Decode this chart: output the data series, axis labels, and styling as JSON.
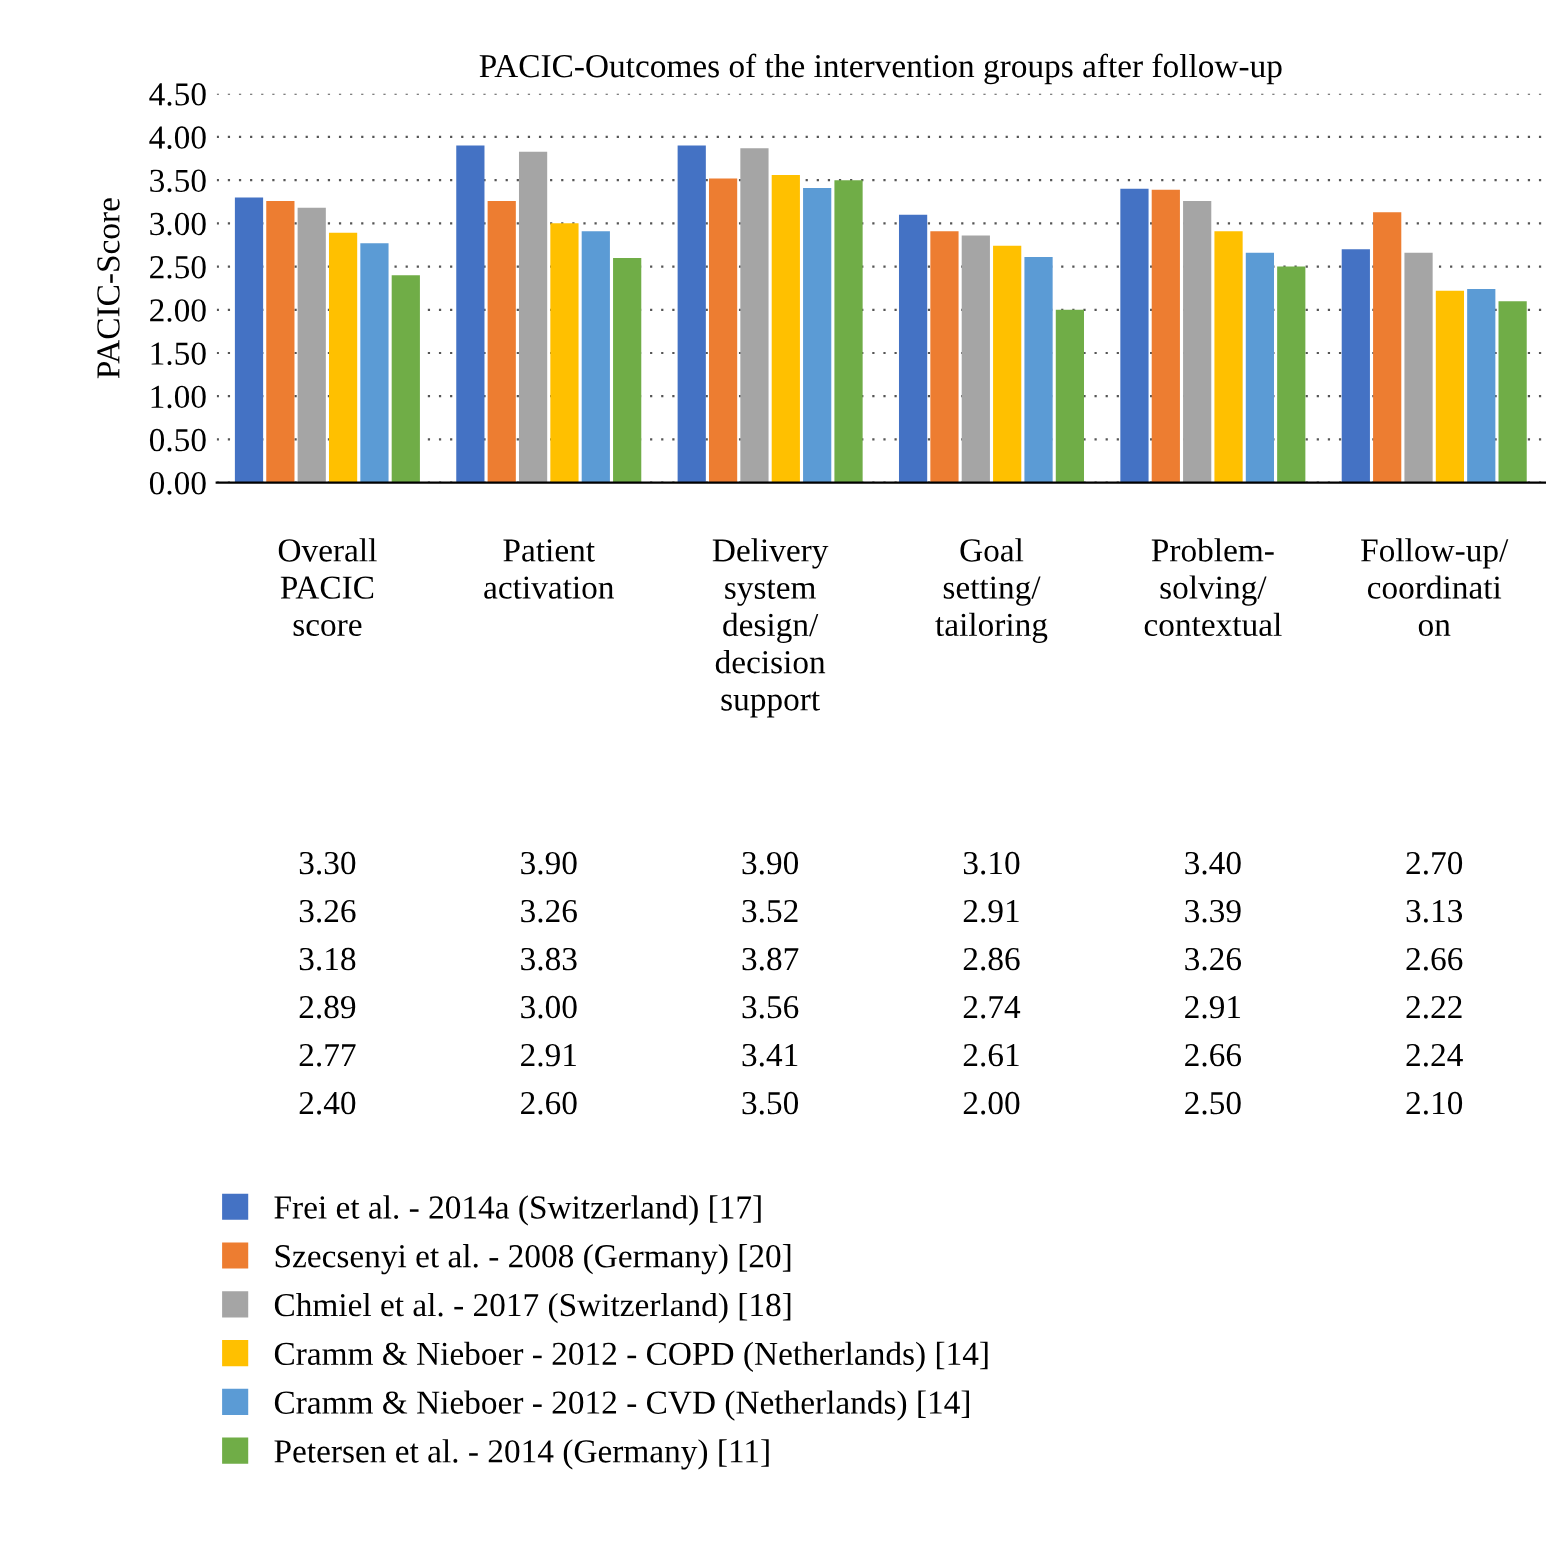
{
  "chart_data": {
    "type": "bar",
    "title": "PACIC-Outcomes of the intervention groups after follow-up",
    "ylabel": "PACIC-Score",
    "categories": [
      "Overall\nPACIC\nscore",
      "Patient\nactivation",
      "Delivery\nsystem\ndesign/\ndecision\nsupport",
      "Goal\nsetting/\ntailoring",
      "Problem-\nsolving/\ncontextual",
      "Follow-up/\ncoordinati\non"
    ],
    "series": [
      {
        "name": "Frei et al. - 2014a (Switzerland) [17]",
        "color": "#4472c4",
        "values": [
          3.3,
          3.9,
          3.9,
          3.1,
          3.4,
          2.7
        ],
        "value_labels": [
          "3.30",
          "3.90",
          "3.90",
          "3.10",
          "3.40",
          "2.70"
        ]
      },
      {
        "name": "Szecsenyi et al. - 2008 (Germany) [20]",
        "color": "#ed7d31",
        "values": [
          3.26,
          3.26,
          3.52,
          2.91,
          3.39,
          3.13
        ],
        "value_labels": [
          "3.26",
          "3.26",
          "3.52",
          "2.91",
          "3.39",
          "3.13"
        ]
      },
      {
        "name": "Chmiel et al. - 2017 (Switzerland) [18]",
        "color": "#a5a5a5",
        "values": [
          3.18,
          3.83,
          3.87,
          2.86,
          3.26,
          2.66
        ],
        "value_labels": [
          "3.18",
          "3.83",
          "3.87",
          "2.86",
          "3.26",
          "2.66"
        ]
      },
      {
        "name": "Cramm & Nieboer - 2012 - COPD (Netherlands) [14]",
        "color": "#ffc000",
        "values": [
          2.89,
          3.0,
          3.56,
          2.74,
          2.91,
          2.22
        ],
        "value_labels": [
          "2.89",
          "3.00",
          "3.56",
          "2.74",
          "2.91",
          "2.22"
        ]
      },
      {
        "name": "Cramm & Nieboer - 2012 - CVD (Netherlands) [14]",
        "color": "#5b9bd5",
        "values": [
          2.77,
          2.91,
          3.41,
          2.61,
          2.66,
          2.24
        ],
        "value_labels": [
          "2.77",
          "2.91",
          "3.41",
          "2.61",
          "2.66",
          "2.24"
        ]
      },
      {
        "name": "Petersen et al. - 2014 (Germany) [11]",
        "color": "#70ad47",
        "values": [
          2.4,
          2.6,
          3.5,
          2.0,
          2.5,
          2.1
        ],
        "value_labels": [
          "2.40",
          "2.60",
          "3.50",
          "2.00",
          "2.50",
          "2.10"
        ]
      }
    ],
    "ylim": [
      0,
      4.5
    ],
    "yticks": [
      {
        "value": 0,
        "label": "0.00"
      },
      {
        "value": 0.5,
        "label": "0.50"
      },
      {
        "value": 1,
        "label": "1.00"
      },
      {
        "value": 1.5,
        "label": "1.50"
      },
      {
        "value": 2,
        "label": "2.00"
      },
      {
        "value": 2.5,
        "label": "2.50"
      },
      {
        "value": 3,
        "label": "3.00"
      },
      {
        "value": 3.5,
        "label": "3.50"
      },
      {
        "value": 4,
        "label": "4.00"
      },
      {
        "value": 4.5,
        "label": "4.50"
      }
    ],
    "grid": "y",
    "legend": "bottom"
  }
}
